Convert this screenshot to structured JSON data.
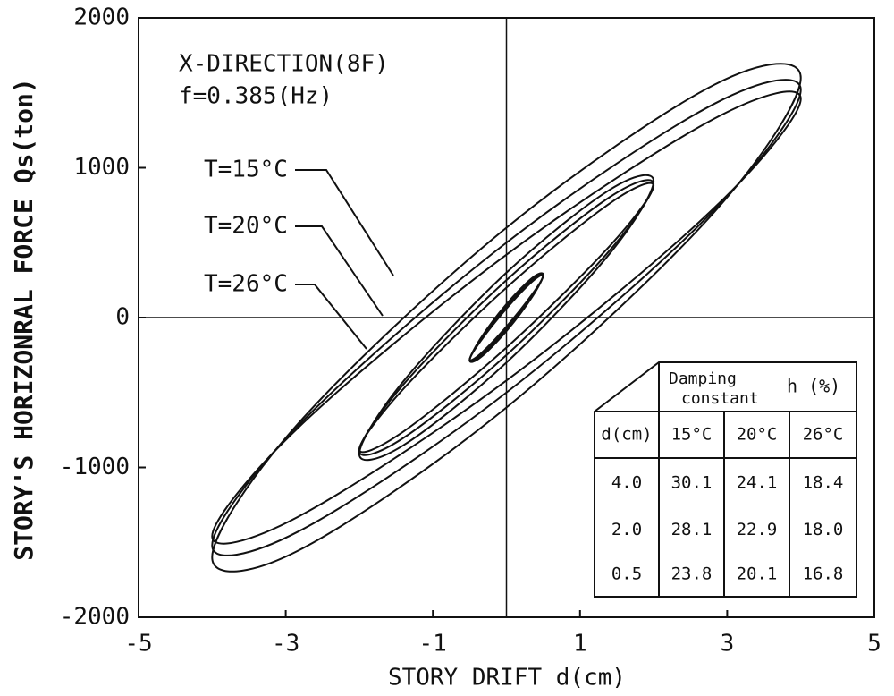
{
  "chart_data": {
    "type": "loop",
    "annotations": [
      "X-DIRECTION(8F)",
      "f=0.385(Hz)"
    ],
    "x_label": "STORY DRIFT  d(cm)",
    "y_label": "STORY'S HORIZONRAL FORCE  Qs(ton)",
    "xlim": [
      -5,
      5
    ],
    "xticks": [
      -5,
      -3,
      -1,
      1,
      3,
      5
    ],
    "ylim": [
      -2000,
      2000
    ],
    "yticks": [
      -2000,
      -1000,
      0,
      1000,
      2000
    ],
    "color": "#111111",
    "series": [
      {
        "name": "T=15°C",
        "loops": [
          {
            "x": [
              4,
              2.83,
              0,
              -2.83,
              -4,
              -2.83,
              0,
              2.83
            ],
            "y": [
              1600,
              1555,
              600,
              -707,
              -1600,
              -1555,
              -600,
              707
            ]
          },
          {
            "x": [
              2,
              1.41,
              0,
              -1.41,
              -2,
              -1.41,
              0,
              1.41
            ],
            "y": [
              910,
              855,
              300,
              -431,
              -910,
              -855,
              -300,
              431
            ]
          },
          {
            "x": [
              0.5,
              0.35,
              0,
              -0.35,
              -0.5,
              -0.35,
              0,
              0.35
            ],
            "y": [
              285,
              265,
              90,
              -138,
              -285,
              -265,
              -90,
              138
            ]
          }
        ]
      },
      {
        "name": "T=20°C",
        "loops": [
          {
            "x": [
              4,
              2.83,
              0,
              -2.83,
              -4,
              -2.83,
              0,
              2.83
            ],
            "y": [
              1520,
              1428,
              500,
              -721,
              -1520,
              -1428,
              -500,
              721
            ]
          },
          {
            "x": [
              2,
              1.41,
              0,
              -1.41,
              -2,
              -1.41,
              0,
              1.41
            ],
            "y": [
              890,
              806,
              250,
              -452,
              -890,
              -806,
              -250,
              452
            ]
          },
          {
            "x": [
              0.5,
              0.35,
              0,
              -0.35,
              -0.5,
              -0.35,
              0,
              0.35
            ],
            "y": [
              283,
              253,
              75,
              -147,
              -283,
              -253,
              -75,
              147
            ]
          }
        ]
      },
      {
        "name": "T=26°C",
        "loops": [
          {
            "x": [
              4,
              2.83,
              0,
              -2.83,
              -4,
              -2.83,
              0,
              2.83
            ],
            "y": [
              1460,
              1329,
              420,
              -735,
              -1460,
              -1329,
              -420,
              735
            ]
          },
          {
            "x": [
              2,
              1.41,
              0,
              -1.41,
              -2,
              -1.41,
              0,
              1.41
            ],
            "y": [
              880,
              764,
              200,
              -481,
              -880,
              -764,
              -200,
              481
            ]
          },
          {
            "x": [
              0.5,
              0.35,
              0,
              -0.35,
              -0.5,
              -0.35,
              0,
              0.35
            ],
            "y": [
              280,
              240,
              60,
              -156,
              -280,
              -240,
              -60,
              156
            ]
          }
        ]
      }
    ],
    "table": {
      "title_lines": [
        "Damping",
        "constant"
      ],
      "unit": "h (%)",
      "header": [
        "d(cm)",
        "15°C",
        "20°C",
        "26°C"
      ],
      "rows": [
        [
          "4.0",
          "30.1",
          "24.1",
          "18.4"
        ],
        [
          "2.0",
          "28.1",
          "22.9",
          "18.0"
        ],
        [
          "0.5",
          "23.8",
          "20.1",
          "16.8"
        ]
      ]
    }
  }
}
